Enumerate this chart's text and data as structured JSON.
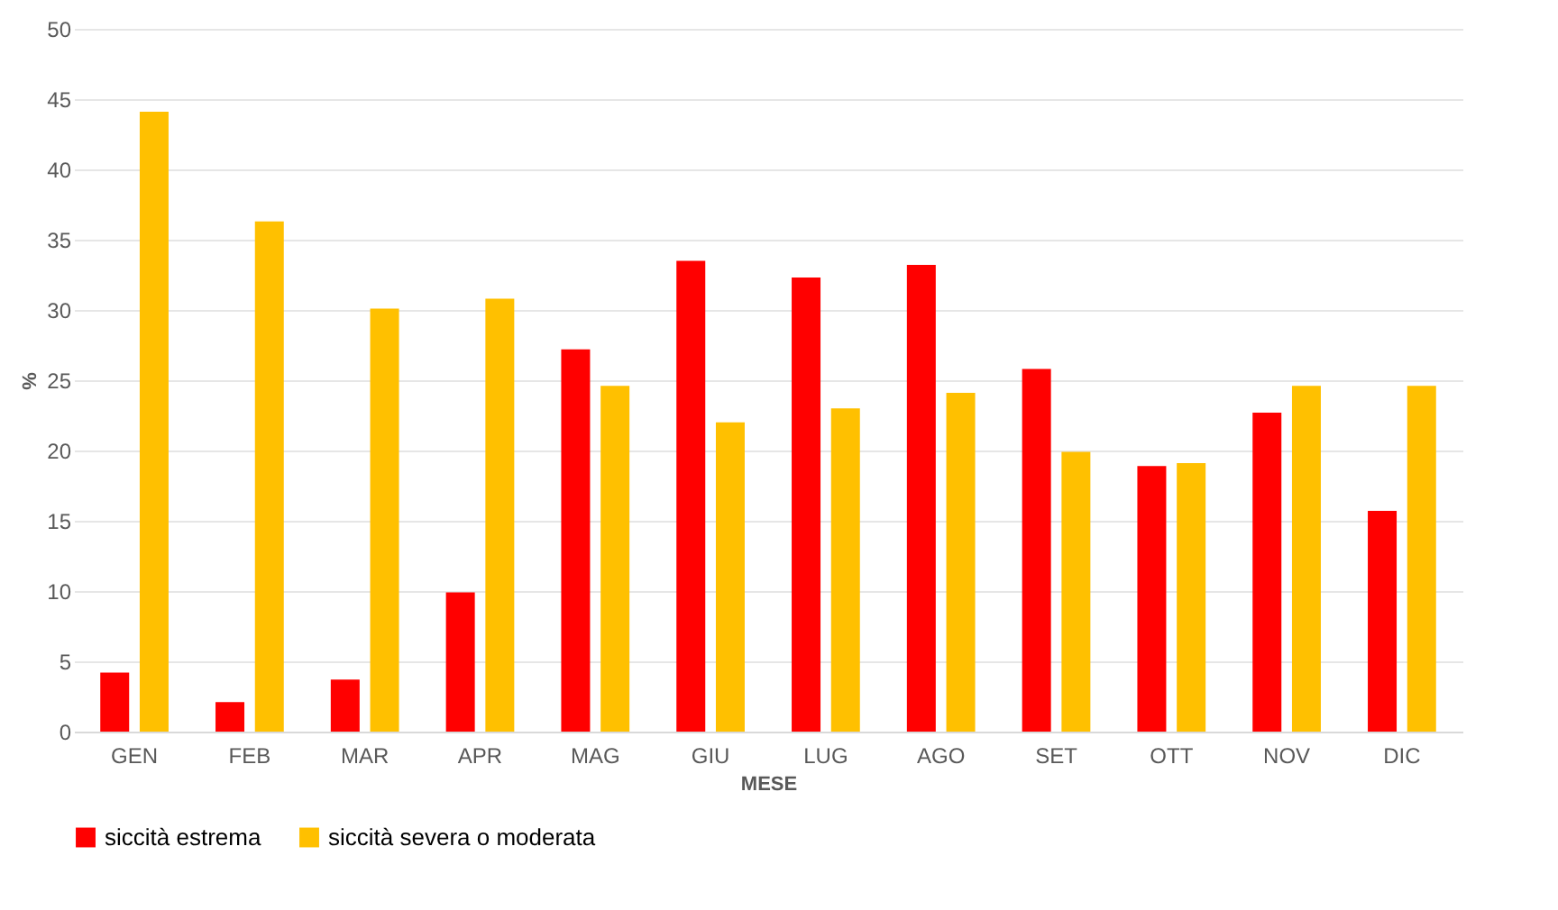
{
  "chart_data": {
    "type": "bar",
    "xlabel": "MESE",
    "ylabel": "%",
    "categories": [
      "GEN",
      "FEB",
      "MAR",
      "APR",
      "MAG",
      "GIU",
      "LUG",
      "AGO",
      "SET",
      "OTT",
      "NOV",
      "DIC"
    ],
    "series": [
      {
        "name": "siccità estrema",
        "color": "#ff0000",
        "values": [
          4.2,
          2.1,
          3.7,
          9.9,
          27.2,
          33.5,
          32.3,
          33.2,
          25.8,
          18.9,
          22.7,
          15.7
        ]
      },
      {
        "name": "siccità severa o moderata",
        "color": "#ffc000",
        "values": [
          44.1,
          36.3,
          30.1,
          30.8,
          24.6,
          22.0,
          23.0,
          24.1,
          19.9,
          19.1,
          24.6,
          24.6
        ]
      }
    ],
    "ylim": [
      0,
      50
    ],
    "yticks": [
      0,
      5,
      10,
      15,
      20,
      25,
      30,
      35,
      40,
      45,
      50
    ],
    "grid": "y",
    "legend": "bottom"
  }
}
